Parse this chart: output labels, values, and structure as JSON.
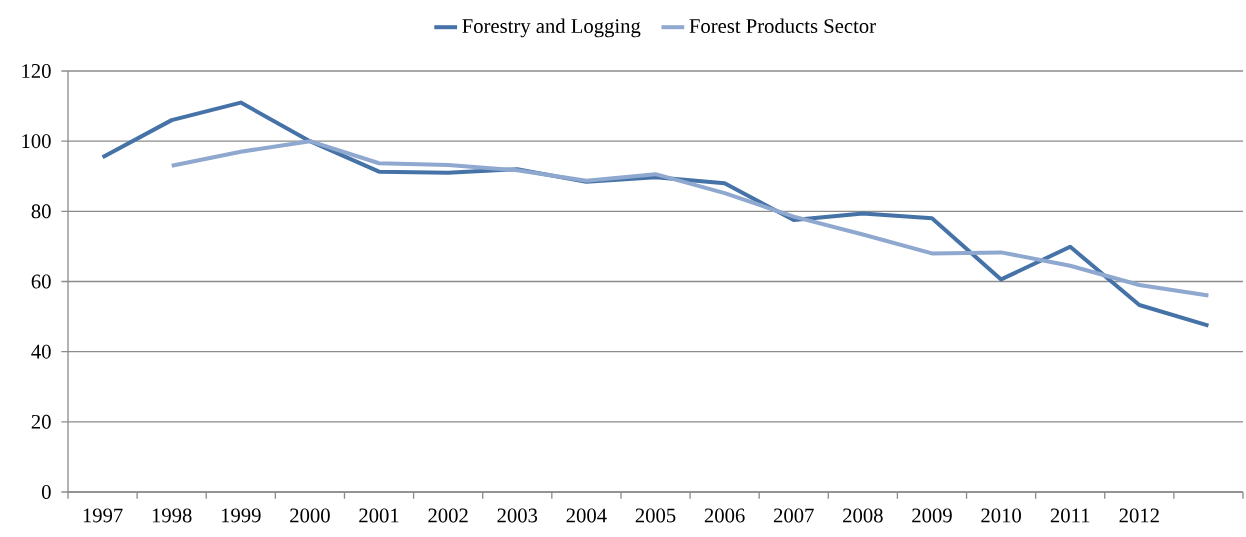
{
  "chart_data": {
    "type": "line",
    "categories": [
      "1997",
      "1998",
      "1999",
      "2000",
      "2001",
      "2002",
      "2003",
      "2004",
      "2005",
      "2006",
      "2007",
      "2008",
      "2009",
      "2010",
      "2011",
      "2012",
      null
    ],
    "series": [
      {
        "name": "Forestry and Logging",
        "color": "#4572a7",
        "values": [
          95.4,
          106,
          111,
          100,
          91.3,
          91,
          92,
          88.4,
          89.7,
          88,
          77.5,
          79.4,
          78,
          60.6,
          69.9,
          53.3,
          47.4
        ]
      },
      {
        "name": "Forest Products Sector",
        "color": "#8ea8cf",
        "values": [
          null,
          93,
          97,
          100,
          93.7,
          93.2,
          91.7,
          88.7,
          90.6,
          85.2,
          78.5,
          73.4,
          68,
          68.3,
          64.5,
          59,
          56
        ]
      }
    ],
    "ylim": [
      0,
      120
    ],
    "yticks": [
      0,
      20,
      40,
      60,
      80,
      100,
      120
    ],
    "grid": "y",
    "legend": "top",
    "marker": "none",
    "line_style": "solid"
  }
}
